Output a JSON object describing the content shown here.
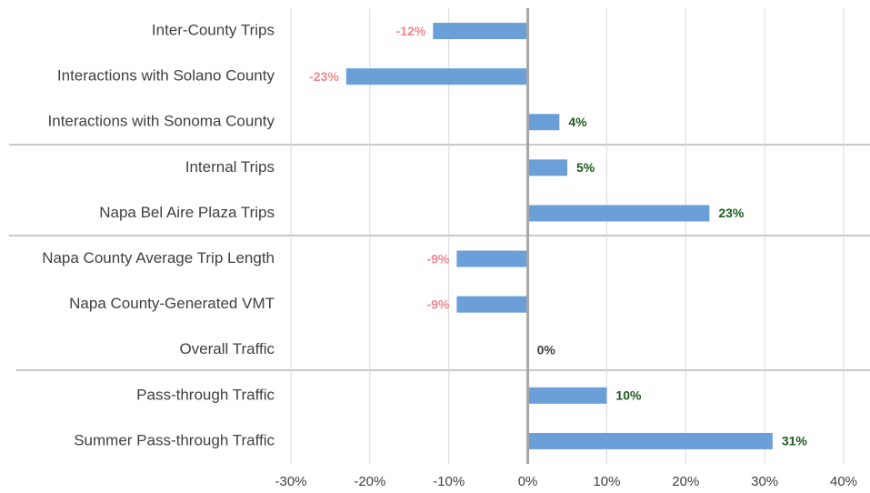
{
  "chart_data": {
    "type": "hbar",
    "categories": [
      "Inter-County Trips",
      "Interactions with Solano County",
      "Interactions with Sonoma County",
      "Internal Trips",
      "Napa Bel Aire Plaza Trips",
      "Napa County Average Trip Length",
      "Napa County-Generated VMT",
      "Overall Traffic",
      "Pass-through Traffic",
      "Summer Pass-through Traffic"
    ],
    "values": [
      -12,
      -23,
      4,
      5,
      23,
      -9,
      -9,
      0,
      10,
      31
    ],
    "value_labels": [
      "-12%",
      "-23%",
      "4%",
      "5%",
      "23%",
      "-9%",
      "-9%",
      "0%",
      "10%",
      "31%"
    ],
    "color": "#6a9fd8",
    "negative_label_color": "#f4858e",
    "positive_label_color": "#1e5a1e",
    "zero_label_color": "#404040",
    "xlim": [
      -30,
      40
    ],
    "xticks": [
      {
        "value": -30,
        "label": "-30%"
      },
      {
        "value": -20,
        "label": "-20%"
      },
      {
        "value": -10,
        "label": "-10%"
      },
      {
        "value": 0,
        "label": "0%"
      },
      {
        "value": 10,
        "label": "10%"
      },
      {
        "value": 20,
        "label": "20%"
      },
      {
        "value": 30,
        "label": "30%"
      },
      {
        "value": 40,
        "label": "40%"
      }
    ],
    "grid": true
  }
}
